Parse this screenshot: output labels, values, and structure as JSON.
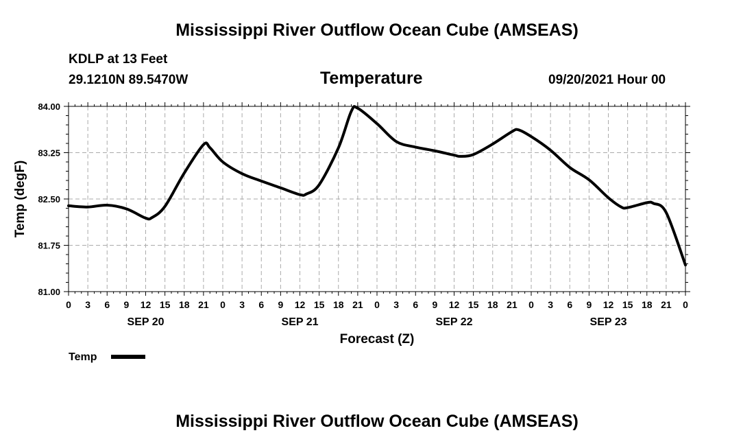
{
  "header": {
    "title": "Mississippi River Outflow Ocean Cube (AMSEAS)",
    "station": "KDLP at 13 Feet",
    "coords": "29.1210N  89.5470W",
    "datetime": "09/20/2021 Hour 00",
    "footer_title": "Mississippi River Outflow Ocean Cube (AMSEAS)"
  },
  "legend": {
    "label": "Temp"
  },
  "chart_data": {
    "type": "line",
    "title": "Temperature",
    "xlabel": "Forecast (Z)",
    "ylabel": "Temp (degF)",
    "ylim": [
      81.0,
      84.0
    ],
    "y_ticks": [
      "84.00",
      "83.25",
      "82.50",
      "81.75",
      "81.00"
    ],
    "x_range_hours": [
      0,
      96
    ],
    "x_tick_labels": [
      "0",
      "3",
      "6",
      "9",
      "12",
      "15",
      "18",
      "21",
      "0",
      "3",
      "6",
      "9",
      "12",
      "15",
      "18",
      "21",
      "0",
      "3",
      "6",
      "9",
      "12",
      "15",
      "18",
      "21",
      "0",
      "3",
      "6",
      "9",
      "12",
      "15",
      "18",
      "21",
      "0"
    ],
    "day_labels": [
      {
        "label": "SEP 20",
        "hour": 12
      },
      {
        "label": "SEP 21",
        "hour": 36
      },
      {
        "label": "SEP 22",
        "hour": 60
      },
      {
        "label": "SEP 23",
        "hour": 84
      }
    ],
    "grid": true,
    "series": [
      {
        "name": "Temp",
        "color": "#000000",
        "x_hours": [
          0,
          3,
          6,
          9,
          12,
          13,
          15,
          18,
          21,
          22,
          24,
          27,
          30,
          33,
          36,
          37,
          39,
          42,
          44,
          45,
          48,
          51,
          54,
          57,
          60,
          61,
          63,
          66,
          69,
          70,
          72,
          75,
          78,
          81,
          84,
          86,
          87,
          90,
          91,
          93,
          96
        ],
        "values": [
          82.39,
          82.37,
          82.4,
          82.34,
          82.19,
          82.2,
          82.38,
          82.92,
          83.38,
          83.33,
          83.1,
          82.91,
          82.79,
          82.68,
          82.57,
          82.58,
          82.73,
          83.33,
          83.92,
          83.97,
          83.72,
          83.43,
          83.34,
          83.28,
          83.21,
          83.19,
          83.22,
          83.39,
          83.59,
          83.62,
          83.51,
          83.29,
          83.01,
          82.81,
          82.52,
          82.37,
          82.36,
          82.44,
          82.43,
          82.28,
          81.43
        ]
      }
    ]
  }
}
